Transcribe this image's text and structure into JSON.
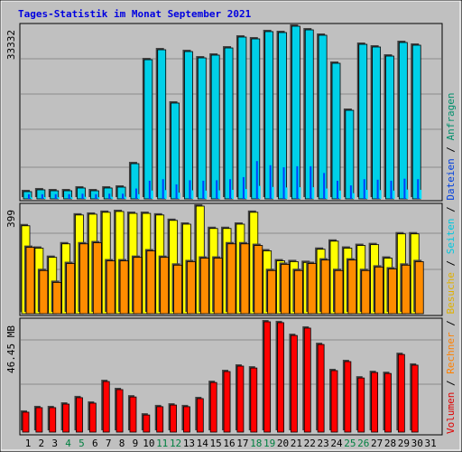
{
  "chart_data": [
    {
      "type": "bar",
      "title": "Tages-Statistik im Monat September 2021",
      "ylim": [
        0,
        33332
      ],
      "yticks": [
        33332
      ],
      "series": [
        {
          "name": "Anfragen",
          "color": "#00d0e8",
          "legend_color": "#00906c",
          "values": [
            1400,
            1750,
            1570,
            1570,
            2100,
            1570,
            2100,
            2270,
            6800,
            26870,
            28790,
            18500,
            28440,
            27220,
            27750,
            29140,
            31240,
            30890,
            32290,
            32110,
            33332,
            32630,
            31590,
            26180,
            17100,
            29840,
            29320,
            27570,
            30190,
            29670,
            null
          ]
        },
        {
          "name": "Dateien",
          "color": "#0040ff",
          "legend_color": "#0040e0",
          "values": [
            900,
            900,
            900,
            900,
            1000,
            900,
            1000,
            1000,
            2000,
            3500,
            3800,
            2800,
            3600,
            3500,
            3600,
            3800,
            4200,
            7300,
            6500,
            6100,
            6300,
            6300,
            5000,
            3500,
            2600,
            3800,
            3700,
            3500,
            3900,
            3800,
            null
          ]
        },
        {
          "name": "Seiten",
          "color": "#00e0ff",
          "legend_color": "#00c8e0",
          "values": [
            300,
            350,
            320,
            320,
            400,
            320,
            400,
            420,
            900,
            1600,
            1700,
            1200,
            1650,
            1600,
            1650,
            1750,
            1900,
            2500,
            2300,
            2200,
            2250,
            2250,
            2000,
            1600,
            1100,
            1750,
            1700,
            1600,
            1800,
            1750,
            null
          ]
        }
      ]
    },
    {
      "type": "bar",
      "ylim": [
        0,
        399
      ],
      "yticks": [
        399
      ],
      "series": [
        {
          "name": "Besuche",
          "color": "#ffff00",
          "legend_color": "#e0b000",
          "values": [
            326,
            243,
            209,
            259,
            366,
            369,
            376,
            379,
            372,
            372,
            366,
            346,
            332,
            399,
            316,
            316,
            332,
            376,
            233,
            196,
            193,
            190,
            239,
            269,
            243,
            253,
            256,
            206,
            296,
            296,
            null
          ]
        },
        {
          "name": "Rechner",
          "color": "#ff8c00",
          "legend_color": "#ff8000",
          "values": [
            246,
            160,
            116,
            186,
            259,
            263,
            196,
            196,
            209,
            233,
            209,
            180,
            193,
            206,
            206,
            259,
            259,
            253,
            160,
            183,
            160,
            186,
            199,
            160,
            199,
            160,
            173,
            166,
            180,
            193,
            null
          ]
        }
      ]
    },
    {
      "type": "bar",
      "ylim": [
        0,
        46.45
      ],
      "yticks": [
        {
          "value": 46.45,
          "label": "46.45 MB"
        }
      ],
      "categories": [
        "1",
        "2",
        "3",
        "4",
        "5",
        "6",
        "7",
        "8",
        "9",
        "10",
        "11",
        "12",
        "13",
        "14",
        "15",
        "16",
        "17",
        "18",
        "19",
        "20",
        "21",
        "22",
        "23",
        "24",
        "25",
        "26",
        "27",
        "28",
        "29",
        "30",
        "31"
      ],
      "category_colors": [
        "#000",
        "#000",
        "#000",
        "#008040",
        "#008040",
        "#000",
        "#000",
        "#000",
        "#000",
        "#000",
        "#008040",
        "#008040",
        "#000",
        "#000",
        "#000",
        "#000",
        "#000",
        "#008040",
        "#008040",
        "#000",
        "#000",
        "#000",
        "#000",
        "#000",
        "#008040",
        "#008040",
        "#000",
        "#000",
        "#000",
        "#000",
        "#000"
      ],
      "series": [
        {
          "name": "Volumen",
          "color": "#ff0000",
          "legend_color": "#e00000",
          "values": [
            8.4,
            10.3,
            10.3,
            11.8,
            14.5,
            12.2,
            21.3,
            17.9,
            14.8,
            7.2,
            10.7,
            11.4,
            10.7,
            14.1,
            20.9,
            25.5,
            27.8,
            27.0,
            46.45,
            46.1,
            40.7,
            43.8,
            36.9,
            25.9,
            29.7,
            22.8,
            25.1,
            24.7,
            32.7,
            28.2,
            null
          ]
        }
      ]
    }
  ],
  "legend_separator": " / "
}
